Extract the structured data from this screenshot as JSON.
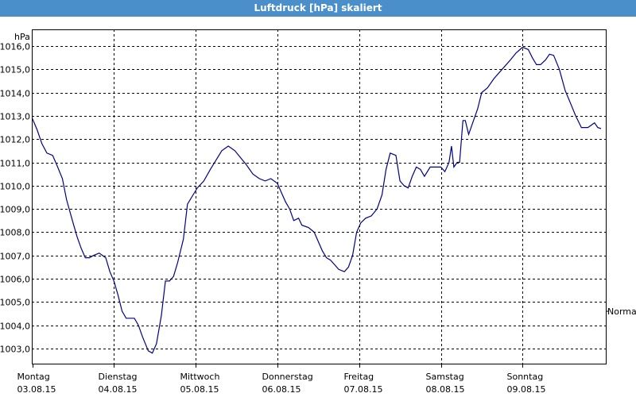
{
  "window": {
    "title": "Luftdruck [hPa] skaliert"
  },
  "chart_data": {
    "type": "line",
    "title": "Luftdruck [hPa] skaliert",
    "ylabel": "hPa",
    "ylim": [
      1002.5,
      1016.5
    ],
    "yticks": [
      1003,
      1004,
      1005,
      1006,
      1007,
      1008,
      1009,
      1010,
      1011,
      1012,
      1013,
      1014,
      1015,
      1016
    ],
    "ytick_labels": [
      "1003,0",
      "1004,0",
      "1005,0",
      "1006,0",
      "1007,0",
      "1008,0",
      "1009,0",
      "1010,0",
      "1011,0",
      "1012,0",
      "1013,0",
      "1014,0",
      "1015,0",
      "1016,0"
    ],
    "xlim": [
      0,
      7
    ],
    "xticks": [
      {
        "x": 0,
        "day": "Montag",
        "date": "03.08.15"
      },
      {
        "x": 1,
        "day": "Dienstag",
        "date": "04.08.15"
      },
      {
        "x": 2,
        "day": "Mittwoch",
        "date": "05.08.15"
      },
      {
        "x": 3,
        "day": "Donnerstag",
        "date": "06.08.15"
      },
      {
        "x": 4,
        "day": "Freitag",
        "date": "07.08.15"
      },
      {
        "x": 5,
        "day": "Samstag",
        "date": "08.08.15"
      },
      {
        "x": 6,
        "day": "Sonntag",
        "date": "09.08.15"
      }
    ],
    "reference_label": "Normal",
    "grid": true,
    "series": [
      {
        "color": "#00008b",
        "points": [
          [
            0.0,
            1012.9
          ],
          [
            0.06,
            1012.4
          ],
          [
            0.12,
            1011.8
          ],
          [
            0.18,
            1011.4
          ],
          [
            0.25,
            1011.3
          ],
          [
            0.3,
            1010.9
          ],
          [
            0.37,
            1010.3
          ],
          [
            0.42,
            1009.4
          ],
          [
            0.5,
            1008.4
          ],
          [
            0.55,
            1007.8
          ],
          [
            0.6,
            1007.3
          ],
          [
            0.65,
            1006.9
          ],
          [
            0.7,
            1006.9
          ],
          [
            0.75,
            1007.0
          ],
          [
            0.82,
            1007.1
          ],
          [
            0.9,
            1006.9
          ],
          [
            0.95,
            1006.3
          ],
          [
            1.0,
            1005.9
          ],
          [
            1.05,
            1005.3
          ],
          [
            1.1,
            1004.6
          ],
          [
            1.15,
            1004.3
          ],
          [
            1.2,
            1004.3
          ],
          [
            1.25,
            1004.3
          ],
          [
            1.3,
            1004.0
          ],
          [
            1.35,
            1003.5
          ],
          [
            1.42,
            1002.9
          ],
          [
            1.47,
            1002.8
          ],
          [
            1.52,
            1003.2
          ],
          [
            1.58,
            1004.4
          ],
          [
            1.63,
            1005.9
          ],
          [
            1.68,
            1005.9
          ],
          [
            1.73,
            1006.1
          ],
          [
            1.78,
            1006.7
          ],
          [
            1.85,
            1007.7
          ],
          [
            1.9,
            1009.2
          ],
          [
            1.95,
            1009.5
          ],
          [
            2.02,
            1009.9
          ],
          [
            2.1,
            1010.2
          ],
          [
            2.18,
            1010.7
          ],
          [
            2.25,
            1011.1
          ],
          [
            2.32,
            1011.5
          ],
          [
            2.4,
            1011.7
          ],
          [
            2.48,
            1011.5
          ],
          [
            2.55,
            1011.2
          ],
          [
            2.62,
            1010.9
          ],
          [
            2.7,
            1010.5
          ],
          [
            2.78,
            1010.3
          ],
          [
            2.85,
            1010.2
          ],
          [
            2.92,
            1010.3
          ],
          [
            3.0,
            1010.1
          ],
          [
            3.05,
            1009.7
          ],
          [
            3.1,
            1009.3
          ],
          [
            3.15,
            1009.0
          ],
          [
            3.2,
            1008.5
          ],
          [
            3.26,
            1008.6
          ],
          [
            3.3,
            1008.3
          ],
          [
            3.38,
            1008.2
          ],
          [
            3.45,
            1008.0
          ],
          [
            3.5,
            1007.6
          ],
          [
            3.55,
            1007.2
          ],
          [
            3.6,
            1006.9
          ],
          [
            3.65,
            1006.8
          ],
          [
            3.7,
            1006.6
          ],
          [
            3.75,
            1006.4
          ],
          [
            3.82,
            1006.3
          ],
          [
            3.87,
            1006.5
          ],
          [
            3.92,
            1007.0
          ],
          [
            3.97,
            1008.0
          ],
          [
            4.02,
            1008.4
          ],
          [
            4.08,
            1008.6
          ],
          [
            4.15,
            1008.7
          ],
          [
            4.22,
            1009.0
          ],
          [
            4.28,
            1009.6
          ],
          [
            4.33,
            1010.7
          ],
          [
            4.38,
            1011.4
          ],
          [
            4.45,
            1011.3
          ],
          [
            4.5,
            1010.2
          ],
          [
            4.55,
            1010.0
          ],
          [
            4.6,
            1009.9
          ],
          [
            4.65,
            1010.4
          ],
          [
            4.7,
            1010.8
          ],
          [
            4.75,
            1010.7
          ],
          [
            4.8,
            1010.4
          ],
          [
            4.87,
            1010.8
          ],
          [
            4.95,
            1010.8
          ],
          [
            5.0,
            1010.8
          ],
          [
            5.05,
            1010.6
          ],
          [
            5.1,
            1011.0
          ],
          [
            5.13,
            1011.7
          ],
          [
            5.16,
            1010.8
          ],
          [
            5.2,
            1011.0
          ],
          [
            5.23,
            1011.0
          ],
          [
            5.27,
            1012.8
          ],
          [
            5.3,
            1012.8
          ],
          [
            5.34,
            1012.2
          ],
          [
            5.4,
            1012.8
          ],
          [
            5.45,
            1013.3
          ],
          [
            5.5,
            1014.0
          ],
          [
            5.57,
            1014.2
          ],
          [
            5.65,
            1014.6
          ],
          [
            5.75,
            1015.0
          ],
          [
            5.85,
            1015.4
          ],
          [
            5.92,
            1015.7
          ],
          [
            6.0,
            1015.95
          ],
          [
            6.07,
            1015.85
          ],
          [
            6.12,
            1015.5
          ],
          [
            6.17,
            1015.2
          ],
          [
            6.22,
            1015.2
          ],
          [
            6.28,
            1015.4
          ],
          [
            6.33,
            1015.65
          ],
          [
            6.38,
            1015.6
          ],
          [
            6.45,
            1015.0
          ],
          [
            6.52,
            1014.1
          ],
          [
            6.58,
            1013.6
          ],
          [
            6.65,
            1013.0
          ],
          [
            6.72,
            1012.5
          ],
          [
            6.8,
            1012.5
          ],
          [
            6.88,
            1012.7
          ],
          [
            6.92,
            1012.5
          ],
          [
            6.96,
            1012.45
          ]
        ]
      }
    ]
  }
}
